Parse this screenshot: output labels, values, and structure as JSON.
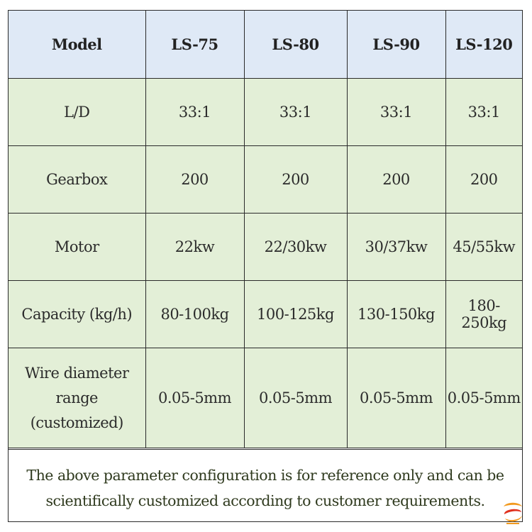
{
  "table": {
    "header": [
      "Model",
      "LS-75",
      "LS-80",
      "LS-90",
      "LS-120"
    ],
    "rows": [
      {
        "label": "L/D",
        "values": [
          "33:1",
          "33:1",
          "33:1",
          "33:1"
        ]
      },
      {
        "label": "Gearbox",
        "values": [
          "200",
          "200",
          "200",
          "200"
        ]
      },
      {
        "label": "Motor",
        "values": [
          "22kw",
          "22/30kw",
          "30/37kw",
          "45/55kw"
        ]
      },
      {
        "label": "Capacity (kg/h)",
        "values": [
          "80-100kg",
          "100-125kg",
          "130-150kg",
          "180-250kg"
        ]
      },
      {
        "label_lines": [
          "Wire diameter",
          "range",
          "(customized)"
        ],
        "values": [
          "0.05-5mm",
          "0.05-5mm",
          "0.05-5mm",
          "0.05-5mm"
        ]
      }
    ]
  },
  "note": {
    "line1": "The above parameter configuration is for reference only and can be",
    "line2": "scientifically customized according to customer requirements."
  },
  "colors": {
    "header_bg": "#dfe9f6",
    "body_bg": "#e3efd7",
    "logo_orange": "#f29a1f",
    "logo_red": "#e0311f"
  },
  "logo": {
    "icon": "brand-logo-icon"
  }
}
